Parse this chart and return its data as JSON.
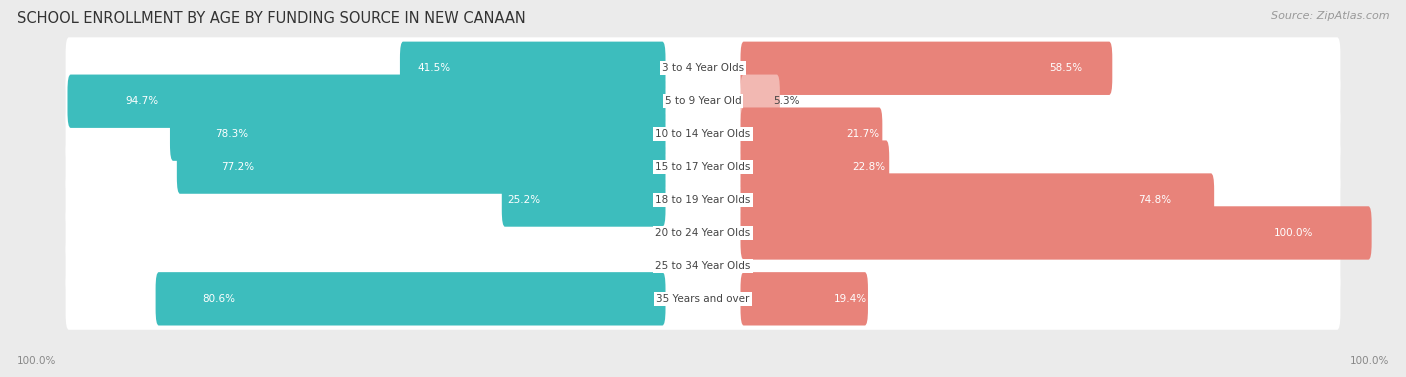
{
  "title": "SCHOOL ENROLLMENT BY AGE BY FUNDING SOURCE IN NEW CANAAN",
  "source": "Source: ZipAtlas.com",
  "categories": [
    "3 to 4 Year Olds",
    "5 to 9 Year Old",
    "10 to 14 Year Olds",
    "15 to 17 Year Olds",
    "18 to 19 Year Olds",
    "20 to 24 Year Olds",
    "25 to 34 Year Olds",
    "35 Years and over"
  ],
  "public_values": [
    41.5,
    94.7,
    78.3,
    77.2,
    25.2,
    0.0,
    0.0,
    80.6
  ],
  "private_values": [
    58.5,
    5.3,
    21.7,
    22.8,
    74.8,
    100.0,
    0.0,
    19.4
  ],
  "public_color": "#3dbdbd",
  "private_color": "#e8837a",
  "public_color_light": "#9fd8d8",
  "private_color_light": "#f2b8b2",
  "bg_color": "#ebebeb",
  "row_bg": "#ffffff",
  "label_dark": "#444444",
  "label_white": "#ffffff",
  "title_fontsize": 10.5,
  "source_fontsize": 8,
  "bar_label_fontsize": 7.5,
  "category_fontsize": 7.5,
  "legend_fontsize": 8,
  "axis_label_fontsize": 7.5
}
